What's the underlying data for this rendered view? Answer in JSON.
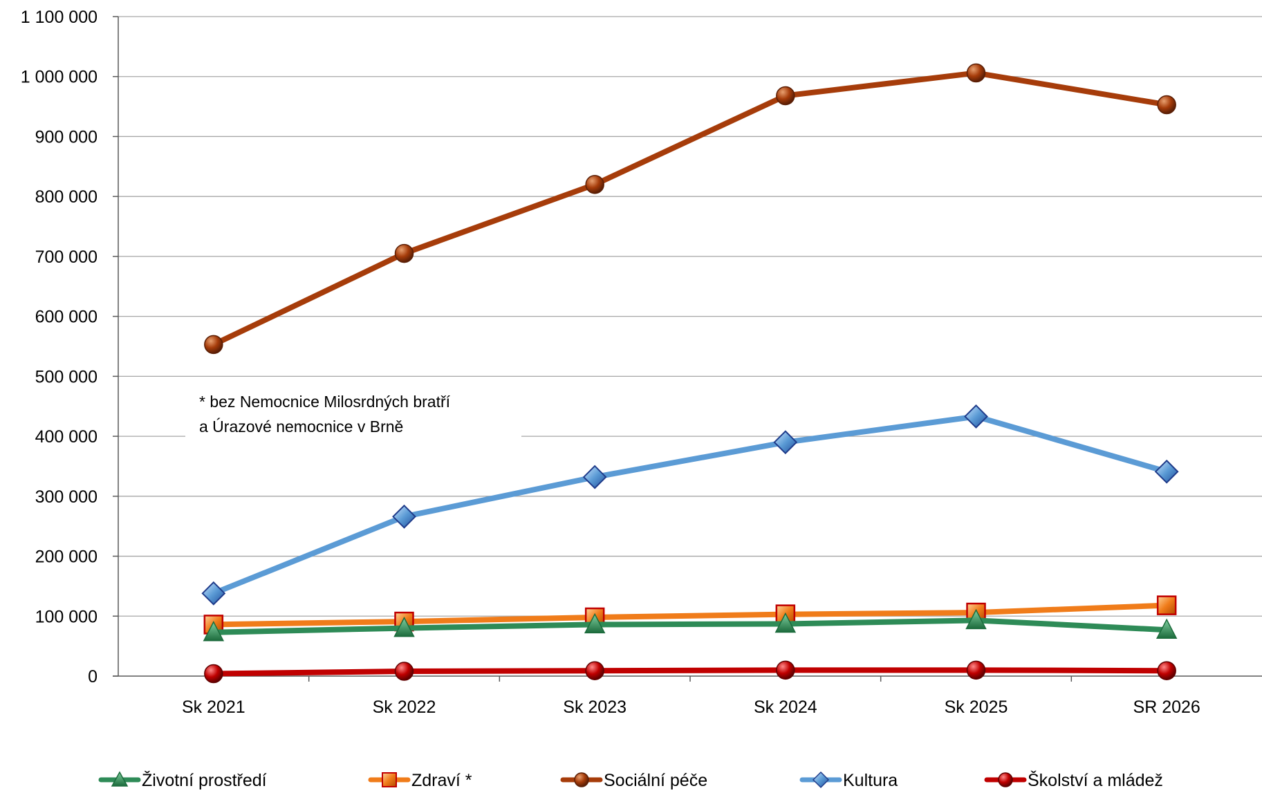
{
  "chart_data": {
    "type": "line",
    "title": "",
    "xlabel": "",
    "ylabel": "",
    "categories": [
      "Sk 2021",
      "Sk 2022",
      "Sk 2023",
      "Sk 2024",
      "Sk 2025",
      "SR 2026"
    ],
    "ylim": [
      0,
      1100000
    ],
    "yticks": [
      0,
      100000,
      200000,
      300000,
      400000,
      500000,
      600000,
      700000,
      800000,
      900000,
      1000000,
      1100000
    ],
    "ytick_labels": [
      "0",
      "100 000",
      "200 000",
      "300 000",
      "400 000",
      "500 000",
      "600 000",
      "700 000",
      "800 000",
      "900 000",
      "1 000 000",
      "1 100 000"
    ],
    "grid": true,
    "legend_position": "bottom",
    "series": [
      {
        "name": "Životní prostředí",
        "values": [
          73000,
          80000,
          86000,
          87000,
          93000,
          77000
        ],
        "color": "#2e8b57",
        "marker": "triangle"
      },
      {
        "name": "Zdraví *",
        "values": [
          86000,
          91000,
          98000,
          103000,
          106000,
          118000
        ],
        "color": "#f07c1a",
        "marker": "square"
      },
      {
        "name": "Sociální péče",
        "values": [
          553000,
          705000,
          820000,
          968000,
          1006000,
          953000
        ],
        "color": "#a63c0a",
        "marker": "circle"
      },
      {
        "name": "Kultura",
        "values": [
          138000,
          266000,
          332000,
          390000,
          433000,
          341000
        ],
        "color": "#5b9bd5",
        "marker": "diamond"
      },
      {
        "name": "Školství a mládež",
        "values": [
          4000,
          8000,
          9000,
          10000,
          10000,
          9000
        ],
        "color": "#c00000",
        "marker": "circle"
      }
    ],
    "annotations": [
      {
        "lines": [
          "* bez Nemocnice Milosrdných bratří",
          "a Úrazové nemocnice v Brně"
        ]
      }
    ]
  }
}
